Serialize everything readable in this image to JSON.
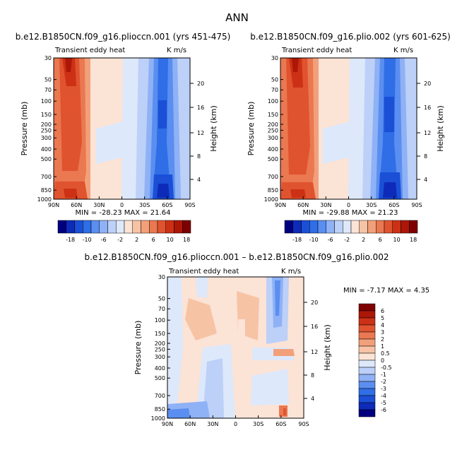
{
  "figure_title": "ANN",
  "palette_full": [
    "#00007f",
    "#0d2bb8",
    "#1a4fd6",
    "#2f6ee6",
    "#5a8ef0",
    "#8fb1f5",
    "#bcd0f8",
    "#dde8fb",
    "#fbe3d6",
    "#f7c3a5",
    "#f2a07a",
    "#ea7851",
    "#e0532f",
    "#cc3115",
    "#ac1708",
    "#7f0000"
  ],
  "palette_diff": [
    "#00007f",
    "#0d2bb8",
    "#1a4fd6",
    "#2f6ee6",
    "#5a8ef0",
    "#8fb1f5",
    "#bcd0f8",
    "#dde8fb",
    "#fbe3d6",
    "#f7c3a5",
    "#f2a07a",
    "#ea7851",
    "#e0532f",
    "#cc3115",
    "#ac1708",
    "#7f0000"
  ],
  "chart_data": [
    {
      "type": "heatmap",
      "id": "panel1",
      "title": "b.e12.B1850CN.f09_g16.plioccn.001 (yrs 451-475)",
      "left_label": "Transient eddy heat",
      "right_label": "K m/s",
      "ylabel": "Pressure (mb)",
      "y2label": "Height (km)",
      "x_ticks": [
        "90N",
        "60N",
        "30N",
        "0",
        "30S",
        "60S",
        "90S"
      ],
      "y_ticks": [
        "30",
        "50",
        "70",
        "100",
        "150",
        "200",
        "250",
        "300",
        "400",
        "500",
        "700",
        "850",
        "1000"
      ],
      "y2_ticks": [
        "20",
        "16",
        "12",
        "8",
        "4"
      ],
      "stats": "MIN = -28.23   MAX = 21.64",
      "min": -28.23,
      "max": 21.64,
      "colorbar_labels": [
        "-18",
        "-10",
        "-6",
        "-2",
        "2",
        "6",
        "10",
        "18"
      ]
    },
    {
      "type": "heatmap",
      "id": "panel2",
      "title": "b.e12.B1850CN.f09_g16.plio.002 (yrs 601-625)",
      "left_label": "Transient eddy heat",
      "right_label": "K m/s",
      "ylabel": "Pressure (mb)",
      "y2label": "Height (km)",
      "x_ticks": [
        "90N",
        "60N",
        "30N",
        "0",
        "30S",
        "60S",
        "90S"
      ],
      "y_ticks": [
        "30",
        "50",
        "70",
        "100",
        "150",
        "200",
        "250",
        "300",
        "400",
        "500",
        "700",
        "850",
        "1000"
      ],
      "y2_ticks": [
        "20",
        "16",
        "12",
        "8",
        "4"
      ],
      "stats": "MIN = -29.88   MAX = 21.23",
      "min": -29.88,
      "max": 21.23,
      "colorbar_labels": [
        "-18",
        "-10",
        "-6",
        "-2",
        "2",
        "6",
        "10",
        "18"
      ]
    },
    {
      "type": "heatmap",
      "id": "panel3",
      "title": "b.e12.B1850CN.f09_g16.plioccn.001 – b.e12.B1850CN.f09_g16.plio.002",
      "left_label": "Transient eddy heat",
      "right_label": "K m/s",
      "ylabel": "Pressure (mb)",
      "y2label": "Height (km)",
      "x_ticks": [
        "90N",
        "60N",
        "30N",
        "0",
        "30S",
        "60S",
        "90S"
      ],
      "y_ticks": [
        "30",
        "50",
        "70",
        "100",
        "150",
        "200",
        "250",
        "300",
        "400",
        "500",
        "700",
        "850",
        "1000"
      ],
      "y2_ticks": [
        "20",
        "16",
        "12",
        "8",
        "4"
      ],
      "stats": "MIN =   -7.17   MAX =   4.35",
      "min": -7.17,
      "max": 4.35,
      "colorbar_labels": [
        "6",
        "5",
        "4",
        "3",
        "2",
        "1",
        "0.5",
        "0",
        "-0.5",
        "-1",
        "-2",
        "-3",
        "-4",
        "-5",
        "-6"
      ]
    }
  ]
}
